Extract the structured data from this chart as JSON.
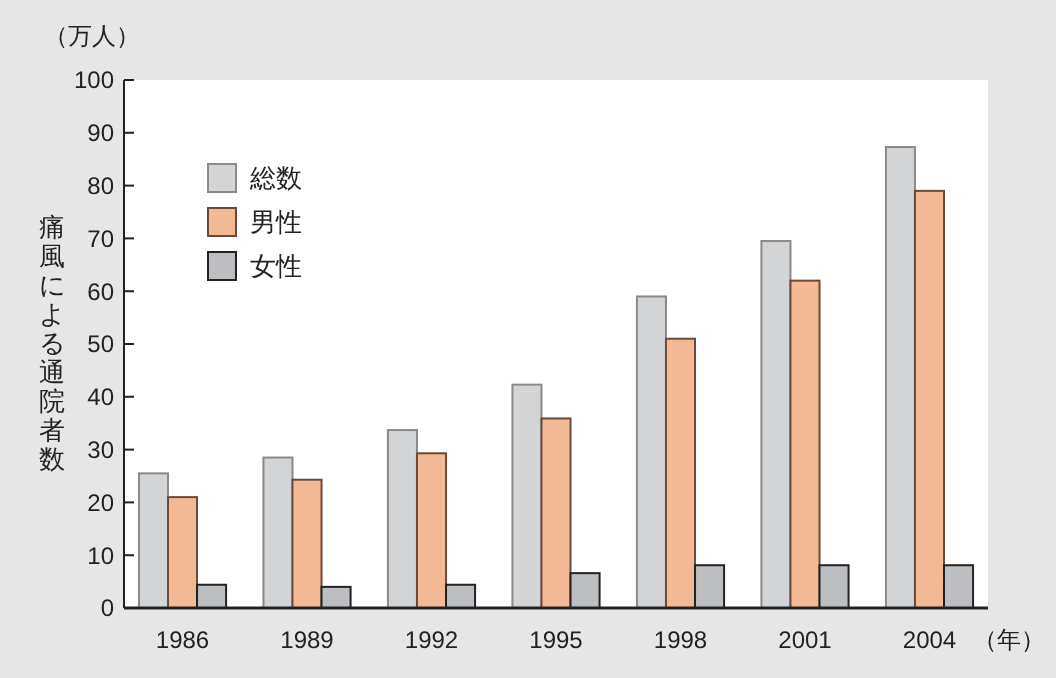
{
  "chart_data": {
    "type": "bar",
    "title": "（万人）",
    "ylabel": "痛風による通院者数",
    "xlabel": "（年）",
    "categories": [
      "1986",
      "1989",
      "1992",
      "1995",
      "1998",
      "2001",
      "2004"
    ],
    "series": [
      {
        "name": "総数",
        "color": "#d3d4d6",
        "values": [
          25.5,
          28.5,
          33.7,
          42.3,
          59,
          69.5,
          87.3
        ]
      },
      {
        "name": "男性",
        "color": "#f2b994",
        "values": [
          21,
          24.3,
          29.3,
          35.9,
          51,
          62,
          79
        ]
      },
      {
        "name": "女性",
        "color": "#bdbec2",
        "values": [
          4.4,
          4,
          4.4,
          6.6,
          8.1,
          8.1,
          8.1
        ]
      }
    ],
    "ylim": [
      0,
      100
    ],
    "yticks": [
      0,
      10,
      20,
      30,
      40,
      50,
      60,
      70,
      80,
      90,
      100
    ],
    "grid": false,
    "legend": "top left"
  }
}
